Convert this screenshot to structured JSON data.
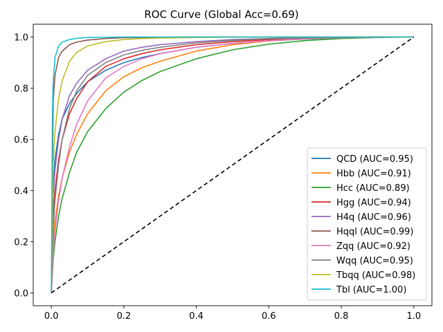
{
  "chart_data": {
    "type": "line",
    "title": "ROC Curve (Global Acc=0.69)",
    "xlabel": "",
    "ylabel": "",
    "xlim": [
      -0.05,
      1.05
    ],
    "ylim": [
      -0.05,
      1.05
    ],
    "xticks": [
      "0.0",
      "0.2",
      "0.4",
      "0.6",
      "0.8",
      "1.0"
    ],
    "yticks": [
      "0.0",
      "0.2",
      "0.4",
      "0.6",
      "0.8",
      "1.0"
    ],
    "grid": false,
    "legend_position": "lower-right",
    "series": [
      {
        "name": "QCD (AUC=0.95)",
        "color": "#1f77b4",
        "x": [
          0,
          0.005,
          0.01,
          0.02,
          0.03,
          0.05,
          0.07,
          0.1,
          0.15,
          0.2,
          0.25,
          0.3,
          0.4,
          0.5,
          0.6,
          0.7,
          0.8,
          0.9,
          1.0
        ],
        "y": [
          0,
          0.4,
          0.52,
          0.62,
          0.68,
          0.74,
          0.78,
          0.825,
          0.87,
          0.9,
          0.92,
          0.935,
          0.96,
          0.975,
          0.985,
          0.992,
          0.996,
          0.999,
          1.0
        ]
      },
      {
        "name": "Hbb (AUC=0.91)",
        "color": "#ff7f0e",
        "x": [
          0,
          0.005,
          0.01,
          0.02,
          0.03,
          0.05,
          0.07,
          0.1,
          0.15,
          0.2,
          0.25,
          0.3,
          0.4,
          0.5,
          0.6,
          0.7,
          0.8,
          0.9,
          1.0
        ],
        "y": [
          0,
          0.2,
          0.28,
          0.38,
          0.45,
          0.55,
          0.62,
          0.7,
          0.79,
          0.845,
          0.88,
          0.905,
          0.945,
          0.97,
          0.985,
          0.993,
          0.997,
          0.999,
          1.0
        ]
      },
      {
        "name": "Hcc (AUC=0.89)",
        "color": "#2ca02c",
        "x": [
          0,
          0.005,
          0.01,
          0.02,
          0.03,
          0.05,
          0.07,
          0.1,
          0.15,
          0.2,
          0.25,
          0.3,
          0.4,
          0.5,
          0.6,
          0.7,
          0.8,
          0.9,
          1.0
        ],
        "y": [
          0,
          0.13,
          0.2,
          0.3,
          0.37,
          0.47,
          0.55,
          0.63,
          0.72,
          0.785,
          0.83,
          0.865,
          0.915,
          0.95,
          0.972,
          0.986,
          0.994,
          0.998,
          1.0
        ]
      },
      {
        "name": "Hgg (AUC=0.94)",
        "color": "#d62728",
        "x": [
          0,
          0.005,
          0.01,
          0.02,
          0.03,
          0.05,
          0.07,
          0.1,
          0.15,
          0.2,
          0.25,
          0.3,
          0.4,
          0.5,
          0.6,
          0.7,
          0.8,
          0.9,
          1.0
        ],
        "y": [
          0,
          0.3,
          0.4,
          0.52,
          0.6,
          0.7,
          0.76,
          0.825,
          0.885,
          0.915,
          0.935,
          0.95,
          0.97,
          0.982,
          0.99,
          0.995,
          0.998,
          0.999,
          1.0
        ]
      },
      {
        "name": "H4q (AUC=0.96)",
        "color": "#9467bd",
        "x": [
          0,
          0.005,
          0.01,
          0.02,
          0.03,
          0.05,
          0.07,
          0.1,
          0.15,
          0.2,
          0.25,
          0.3,
          0.4,
          0.5,
          0.6,
          0.7,
          0.8,
          0.9,
          1.0
        ],
        "y": [
          0,
          0.38,
          0.48,
          0.6,
          0.68,
          0.77,
          0.82,
          0.87,
          0.915,
          0.945,
          0.96,
          0.97,
          0.982,
          0.99,
          0.994,
          0.997,
          0.999,
          1.0,
          1.0
        ]
      },
      {
        "name": "Hqql (AUC=0.99)",
        "color": "#8c564b",
        "x": [
          0,
          0.005,
          0.01,
          0.02,
          0.03,
          0.05,
          0.07,
          0.1,
          0.15,
          0.2,
          0.25,
          0.3,
          0.4,
          0.5,
          0.6,
          0.7,
          0.8,
          0.9,
          1.0
        ],
        "y": [
          0,
          0.75,
          0.85,
          0.92,
          0.945,
          0.97,
          0.98,
          0.988,
          0.994,
          0.997,
          0.998,
          0.999,
          1.0,
          1.0,
          1.0,
          1.0,
          1.0,
          1.0,
          1.0
        ]
      },
      {
        "name": "Zqq (AUC=0.92)",
        "color": "#e377c2",
        "x": [
          0,
          0.005,
          0.01,
          0.02,
          0.03,
          0.05,
          0.07,
          0.1,
          0.15,
          0.2,
          0.25,
          0.3,
          0.4,
          0.5,
          0.6,
          0.7,
          0.8,
          0.9,
          1.0
        ],
        "y": [
          0,
          0.15,
          0.24,
          0.36,
          0.45,
          0.57,
          0.66,
          0.75,
          0.84,
          0.885,
          0.915,
          0.935,
          0.96,
          0.975,
          0.986,
          0.993,
          0.997,
          0.999,
          1.0
        ]
      },
      {
        "name": "Wqq (AUC=0.95)",
        "color": "#7f7f7f",
        "x": [
          0,
          0.005,
          0.01,
          0.02,
          0.03,
          0.05,
          0.07,
          0.1,
          0.15,
          0.2,
          0.25,
          0.3,
          0.4,
          0.5,
          0.6,
          0.7,
          0.8,
          0.9,
          1.0
        ],
        "y": [
          0,
          0.25,
          0.36,
          0.5,
          0.6,
          0.72,
          0.79,
          0.85,
          0.9,
          0.93,
          0.948,
          0.96,
          0.977,
          0.987,
          0.993,
          0.996,
          0.998,
          1.0,
          1.0
        ]
      },
      {
        "name": "Tbqq (AUC=0.98)",
        "color": "#bcbd22",
        "x": [
          0,
          0.005,
          0.01,
          0.02,
          0.03,
          0.05,
          0.07,
          0.1,
          0.15,
          0.2,
          0.25,
          0.3,
          0.4,
          0.5,
          0.6,
          0.7,
          0.8,
          0.9,
          1.0
        ],
        "y": [
          0,
          0.5,
          0.63,
          0.76,
          0.83,
          0.905,
          0.94,
          0.965,
          0.982,
          0.99,
          0.994,
          0.996,
          0.998,
          0.999,
          1.0,
          1.0,
          1.0,
          1.0,
          1.0
        ]
      },
      {
        "name": "Tbl (AUC=1.00)",
        "color": "#17becf",
        "x": [
          0,
          0.003,
          0.005,
          0.01,
          0.02,
          0.03,
          0.05,
          0.07,
          0.1,
          0.15,
          0.2,
          0.3,
          0.5,
          0.7,
          1.0
        ],
        "y": [
          0,
          0.7,
          0.82,
          0.92,
          0.965,
          0.98,
          0.99,
          0.995,
          0.998,
          0.999,
          1.0,
          1.0,
          1.0,
          1.0,
          1.0
        ]
      }
    ],
    "reference_line": {
      "x": [
        0,
        1
      ],
      "y": [
        0,
        1
      ],
      "color": "#000000",
      "style": "dashed"
    }
  }
}
